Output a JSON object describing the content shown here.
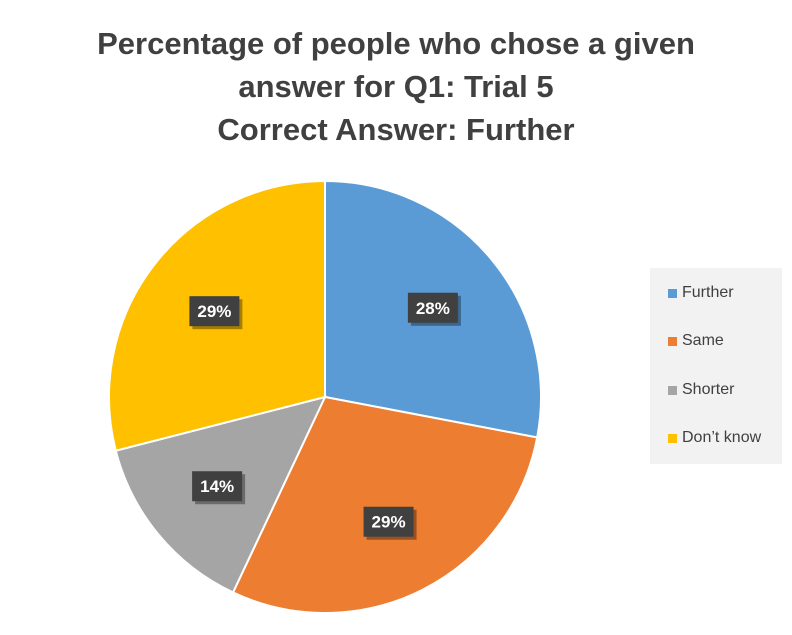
{
  "title_lines": [
    "Percentage of people who chose a given",
    "answer for Q1: Trial 5",
    "Correct Answer: Further"
  ],
  "chart_data": {
    "type": "pie",
    "title": "Percentage of people who chose a given answer for Q1: Trial 5 Correct Answer: Further",
    "start_angle_deg": 0,
    "direction": "clockwise",
    "legend_position": "right",
    "slices": [
      {
        "label": "Further",
        "value": 28,
        "data_label": "28%",
        "color": "#5B9BD5"
      },
      {
        "label": "Same",
        "value": 29,
        "data_label": "29%",
        "color": "#ED7D31"
      },
      {
        "label": "Shorter",
        "value": 14,
        "data_label": "14%",
        "color": "#A5A5A5"
      },
      {
        "label": "Don’t know",
        "value": 29,
        "data_label": "29%",
        "color": "#FFC000"
      }
    ]
  },
  "legend": {
    "items": [
      {
        "label": "Further",
        "color": "#5B9BD5"
      },
      {
        "label": "Same",
        "color": "#ED7D31"
      },
      {
        "label": "Shorter",
        "color": "#A5A5A5"
      },
      {
        "label": "Don’t know",
        "color": "#FFC000"
      }
    ]
  },
  "colors": {
    "title": "#404040",
    "label_background": "#404040",
    "label_text": "#FFFFFF",
    "legend_background": "#F2F2F2"
  }
}
